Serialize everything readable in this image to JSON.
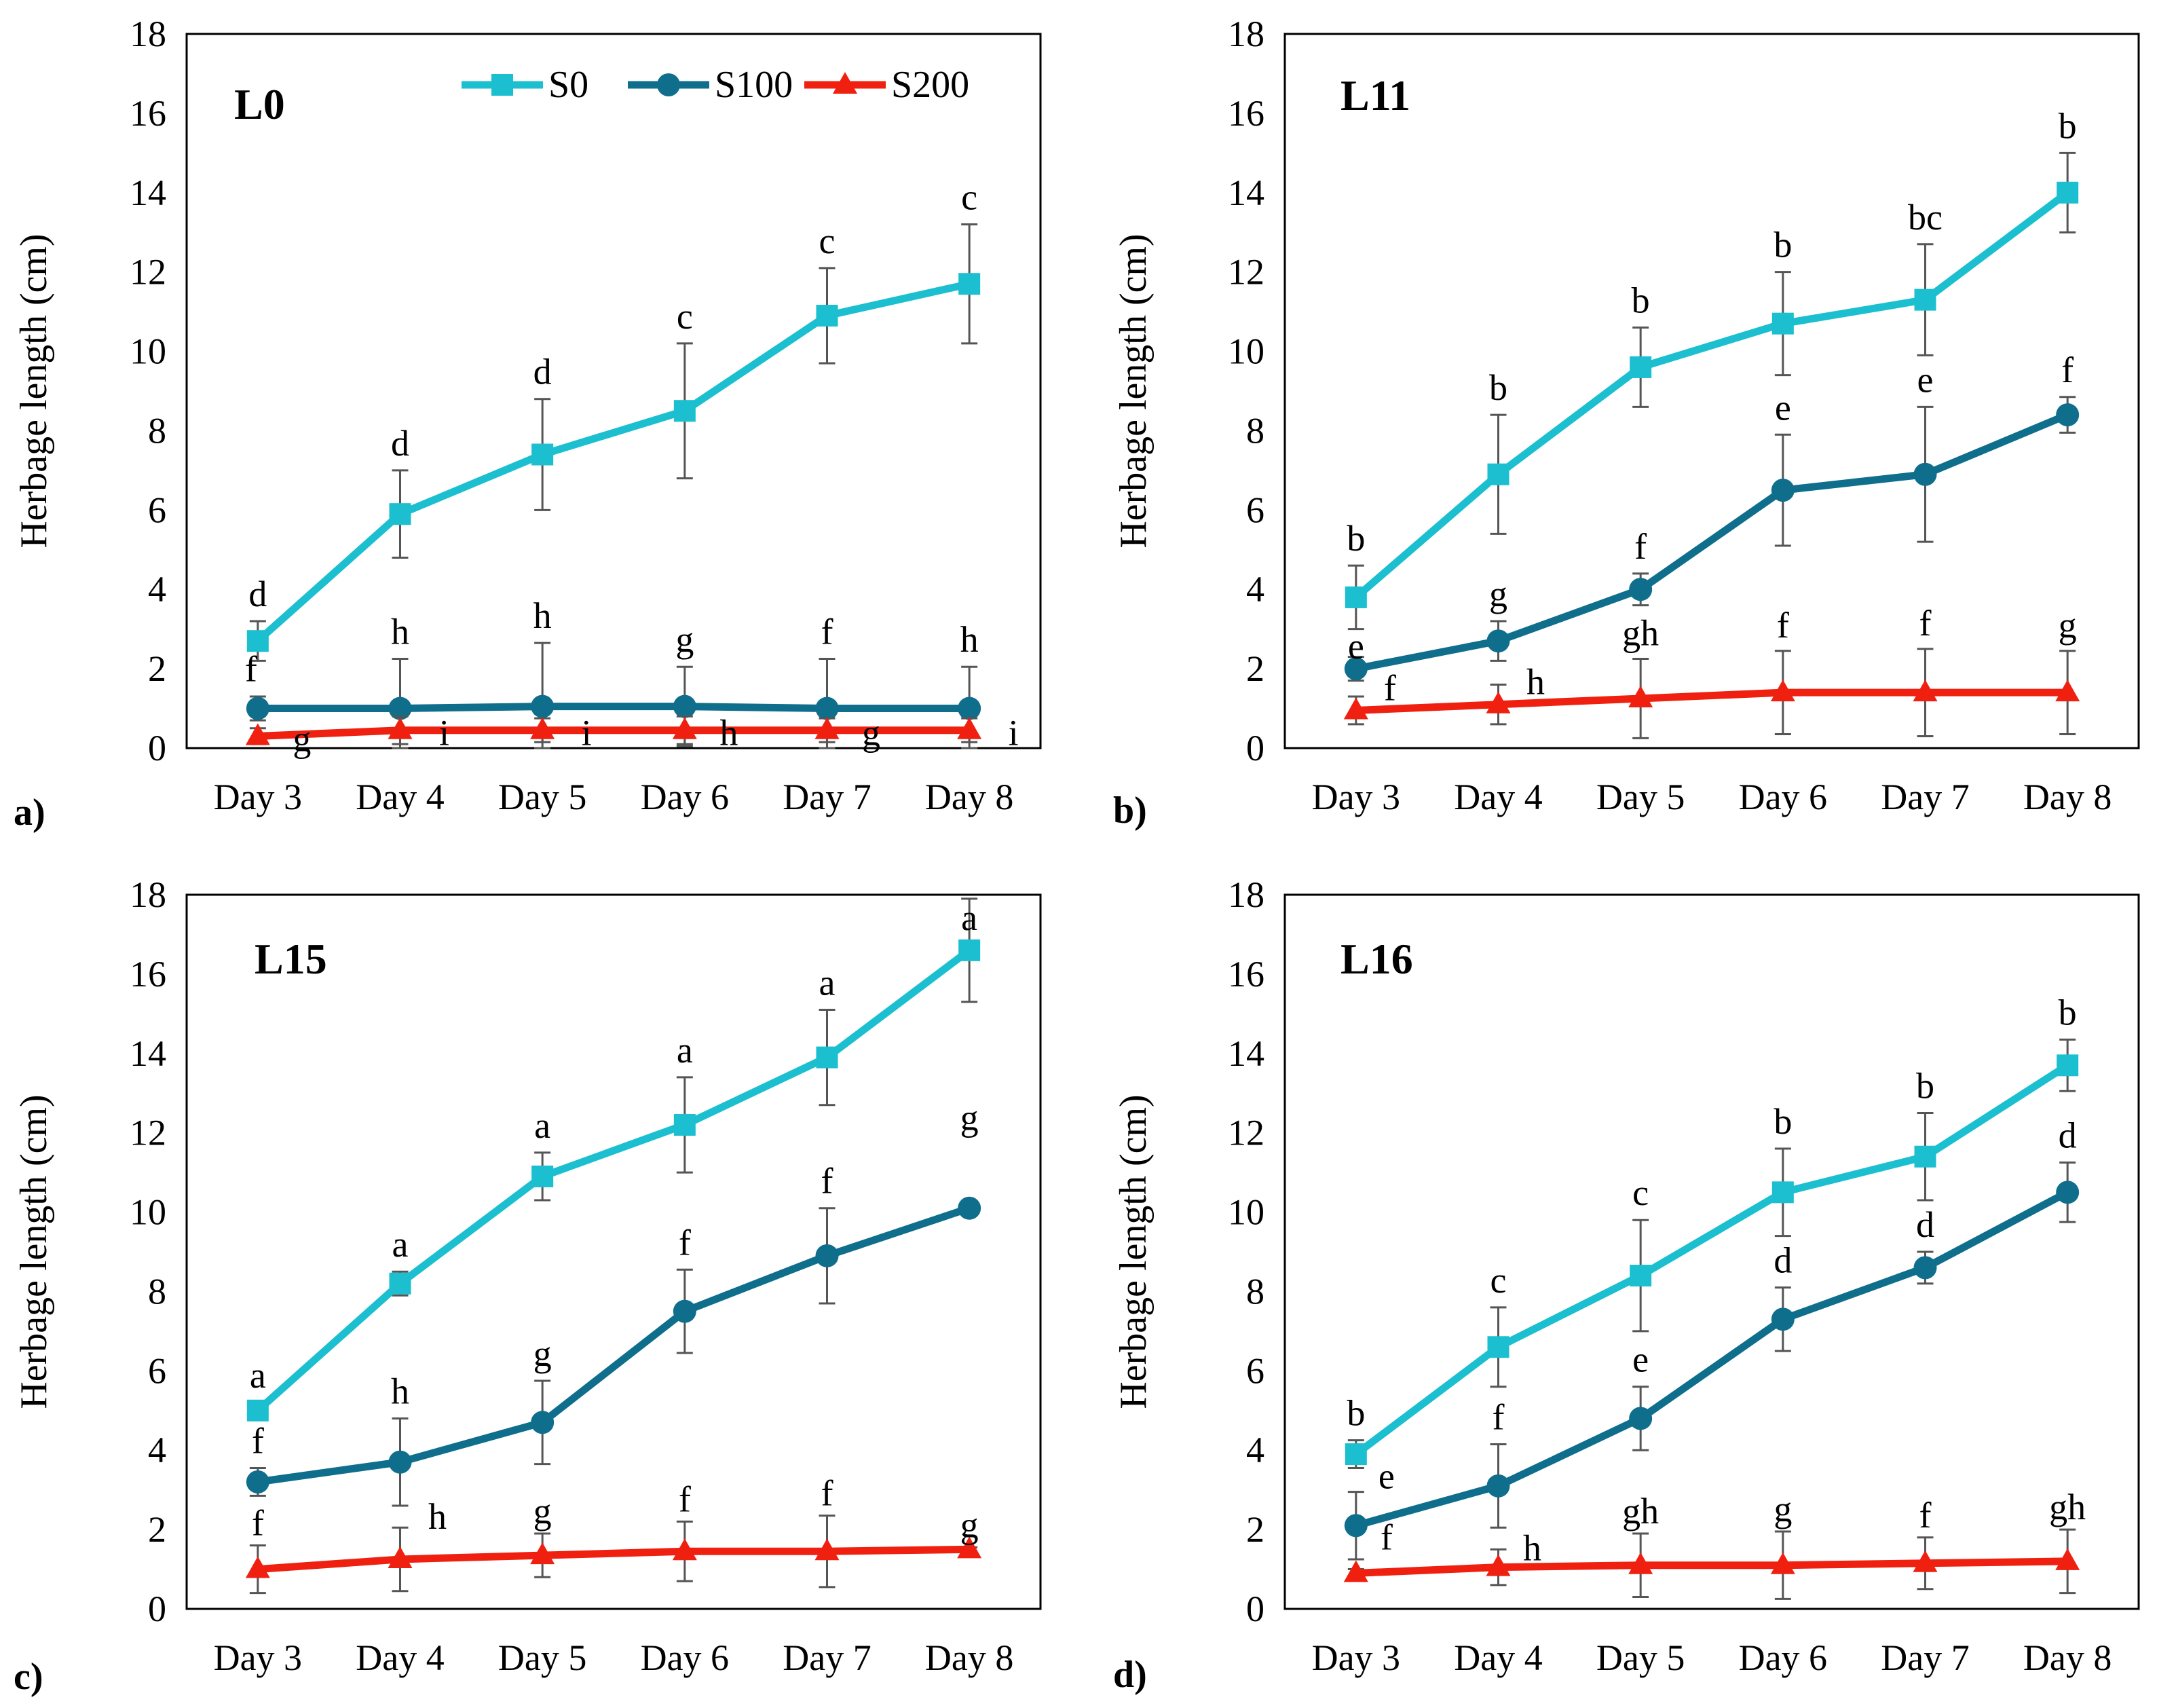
{
  "figure": {
    "colors": {
      "S0": "#1BBFCF",
      "S100": "#0E6E8C",
      "S200": "#F02010",
      "errorbar": "#555555"
    }
  },
  "legend": [
    {
      "key": "S0",
      "label": "S0",
      "marker": "square"
    },
    {
      "key": "S100",
      "label": "S100",
      "marker": "circle"
    },
    {
      "key": "S200",
      "label": "S200",
      "marker": "triangle"
    }
  ],
  "chart_data": [
    {
      "type": "line",
      "panel_label": "a)",
      "title": "L0",
      "ylabel": "Herbage length (cm)",
      "ylim": [
        0,
        18
      ],
      "yticks": [
        0,
        2,
        4,
        6,
        8,
        10,
        12,
        14,
        16,
        18
      ],
      "grid": false,
      "legend_position": "top",
      "categories": [
        "Day 3",
        "Day 4",
        "Day 5",
        "Day 6",
        "Day 7",
        "Day 8"
      ],
      "series": [
        {
          "key": "S0",
          "name": "S0",
          "values": [
            2.7,
            5.9,
            7.4,
            8.5,
            10.9,
            11.7
          ],
          "errors": [
            0.5,
            1.1,
            1.4,
            1.7,
            1.2,
            1.5
          ],
          "labels": [
            "d",
            "d",
            "d",
            "c",
            "c",
            "c"
          ]
        },
        {
          "key": "S100",
          "name": "S100",
          "values": [
            1.0,
            1.0,
            1.05,
            1.05,
            1.0,
            1.0
          ],
          "errors": [
            0.3,
            1.25,
            1.6,
            1.0,
            1.25,
            1.05
          ],
          "labels": [
            "f",
            "h",
            "h",
            "g",
            "f",
            "h"
          ]
        },
        {
          "key": "S200",
          "name": "S200",
          "values": [
            0.3,
            0.45,
            0.45,
            0.45,
            0.45,
            0.45
          ],
          "errors": [
            0.2,
            0.35,
            0.3,
            0.35,
            0.3,
            0.3
          ],
          "labels": [
            "g",
            "i",
            "i",
            "h",
            "g",
            "i"
          ]
        }
      ]
    },
    {
      "type": "line",
      "panel_label": "b)",
      "title": "L11",
      "ylabel": "Herbage length (cm)",
      "ylim": [
        0,
        18
      ],
      "yticks": [
        0,
        2,
        4,
        6,
        8,
        10,
        12,
        14,
        16,
        18
      ],
      "grid": false,
      "categories": [
        "Day 3",
        "Day 4",
        "Day 5",
        "Day 6",
        "Day 7",
        "Day 8"
      ],
      "series": [
        {
          "key": "S0",
          "name": "S0",
          "values": [
            3.8,
            6.9,
            9.6,
            10.7,
            11.3,
            14.0
          ],
          "errors": [
            0.8,
            1.5,
            1.0,
            1.3,
            1.4,
            1.0
          ],
          "labels": [
            "b",
            "b",
            "b",
            "b",
            "bc",
            "b"
          ]
        },
        {
          "key": "S100",
          "name": "S100",
          "values": [
            2.0,
            2.7,
            4.0,
            6.5,
            6.9,
            8.4
          ],
          "errors": [
            0.3,
            0.5,
            0.4,
            1.4,
            1.7,
            0.45
          ],
          "labels": [
            "e",
            "g",
            "f",
            "e",
            "e",
            "f"
          ]
        },
        {
          "key": "S200",
          "name": "S200",
          "values": [
            0.95,
            1.1,
            1.25,
            1.4,
            1.4,
            1.4
          ],
          "errors": [
            0.35,
            0.5,
            1.0,
            1.05,
            1.1,
            1.05
          ],
          "labels": [
            "f",
            "h",
            "gh",
            "f",
            "f",
            "g"
          ]
        }
      ]
    },
    {
      "type": "line",
      "panel_label": "c)",
      "title": "L15",
      "ylabel": "Herbage length (cm)",
      "ylim": [
        0,
        18
      ],
      "yticks": [
        0,
        2,
        4,
        6,
        8,
        10,
        12,
        14,
        16,
        18
      ],
      "grid": false,
      "categories": [
        "Day 3",
        "Day 4",
        "Day 5",
        "Day 6",
        "Day 7",
        "Day 8"
      ],
      "series": [
        {
          "key": "S0",
          "name": "S0",
          "values": [
            5.0,
            8.2,
            10.9,
            12.2,
            13.9,
            16.6
          ],
          "errors": [
            0.2,
            0.3,
            0.6,
            1.2,
            1.2,
            1.3
          ],
          "labels": [
            "a",
            "a",
            "a",
            "a",
            "a",
            "a"
          ]
        },
        {
          "key": "S100",
          "name": "S100",
          "values": [
            3.2,
            3.7,
            4.7,
            7.5,
            8.9,
            10.1
          ],
          "errors": [
            0.35,
            1.1,
            1.05,
            1.05,
            1.2,
            0.1
          ],
          "labels": [
            "f",
            "h",
            "g",
            "f",
            "f",
            "g"
          ]
        },
        {
          "key": "S200",
          "name": "S200",
          "values": [
            1.0,
            1.25,
            1.35,
            1.45,
            1.45,
            1.5
          ],
          "errors": [
            0.6,
            0.8,
            0.55,
            0.75,
            0.9,
            0.05
          ],
          "labels": [
            "f",
            "h",
            "g",
            "f",
            "f",
            "g"
          ]
        }
      ]
    },
    {
      "type": "line",
      "panel_label": "d)",
      "title": "L16",
      "ylabel": "Herbage length (cm)",
      "ylim": [
        0,
        18
      ],
      "yticks": [
        0,
        2,
        4,
        6,
        8,
        10,
        12,
        14,
        16,
        18
      ],
      "grid": false,
      "categories": [
        "Day 3",
        "Day 4",
        "Day 5",
        "Day 6",
        "Day 7",
        "Day 8"
      ],
      "series": [
        {
          "key": "S0",
          "name": "S0",
          "values": [
            3.9,
            6.6,
            8.4,
            10.5,
            11.4,
            13.7
          ],
          "errors": [
            0.35,
            1.0,
            1.4,
            1.1,
            1.1,
            0.65
          ],
          "labels": [
            "b",
            "c",
            "c",
            "b",
            "b",
            "b"
          ]
        },
        {
          "key": "S100",
          "name": "S100",
          "values": [
            2.1,
            3.1,
            4.8,
            7.3,
            8.6,
            10.5
          ],
          "errors": [
            0.85,
            1.05,
            0.8,
            0.8,
            0.4,
            0.75
          ],
          "labels": [
            "e",
            "f",
            "e",
            "d",
            "d",
            "d"
          ]
        },
        {
          "key": "S200",
          "name": "S200",
          "values": [
            0.9,
            1.05,
            1.1,
            1.1,
            1.15,
            1.2
          ],
          "errors": [
            0.1,
            0.45,
            0.8,
            0.85,
            0.65,
            0.8
          ],
          "labels": [
            "f",
            "h",
            "gh",
            "g",
            "f",
            "gh"
          ]
        }
      ]
    }
  ]
}
